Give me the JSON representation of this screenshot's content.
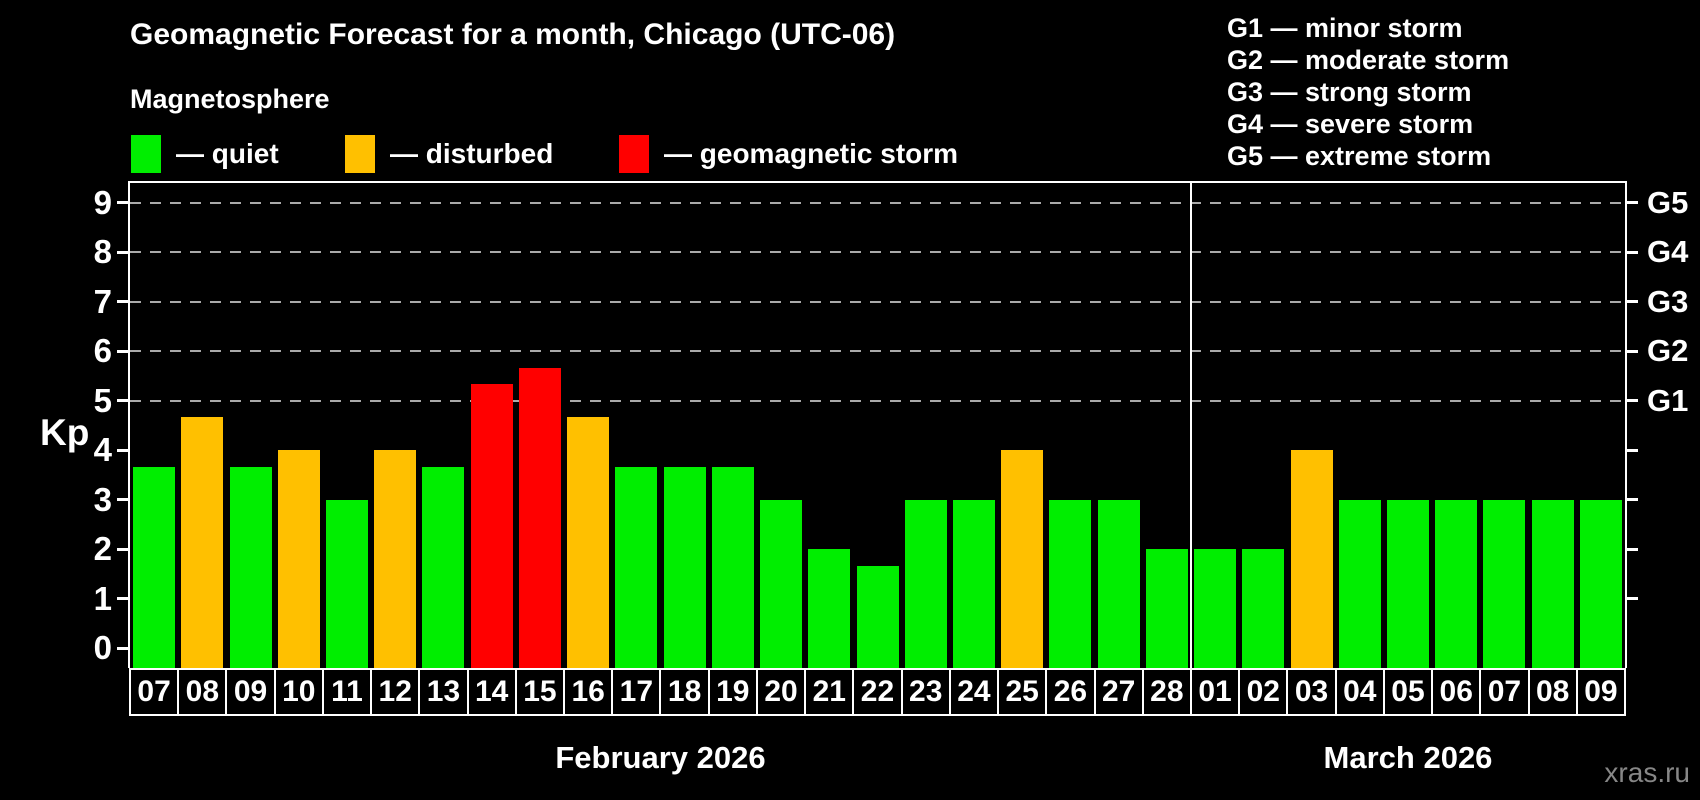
{
  "title": "Geomagnetic Forecast for a month, Chicago (UTC-06)",
  "subtitle": "Magnetosphere",
  "legend": {
    "items": [
      {
        "status": "quiet",
        "label": "— quiet",
        "color": "#00ee00"
      },
      {
        "status": "disturbed",
        "label": "— disturbed",
        "color": "#ffc000"
      },
      {
        "status": "storm",
        "label": "— geomagnetic storm",
        "color": "#ff0000"
      }
    ]
  },
  "storm_scale": [
    {
      "code": "G1",
      "name": "minor storm",
      "label": "G1 — minor storm"
    },
    {
      "code": "G2",
      "name": "moderate storm",
      "label": "G2 — moderate storm"
    },
    {
      "code": "G3",
      "name": "strong storm",
      "label": "G3 — strong storm"
    },
    {
      "code": "G4",
      "name": "severe storm",
      "label": "G4 — severe storm"
    },
    {
      "code": "G5",
      "name": "extreme storm",
      "label": "G5 — extreme storm"
    }
  ],
  "watermark": "xras.ru",
  "chart_data": {
    "type": "bar",
    "ylabel": "Kp",
    "ylim": [
      -0.4,
      9.4
    ],
    "yticks": [
      0,
      1,
      2,
      3,
      4,
      5,
      6,
      7,
      8,
      9
    ],
    "right_ticks": [
      1,
      2,
      3,
      4,
      5,
      6,
      7,
      8,
      9
    ],
    "gridlines_kp": [
      5,
      6,
      7,
      8,
      9
    ],
    "right_axis": [
      {
        "kp": 9,
        "label": "G5"
      },
      {
        "kp": 8,
        "label": "G4"
      },
      {
        "kp": 7,
        "label": "G3"
      },
      {
        "kp": 6,
        "label": "G2"
      },
      {
        "kp": 5,
        "label": "G1"
      }
    ],
    "months": [
      {
        "label": "February 2026",
        "days": 22
      },
      {
        "label": "March 2026",
        "days": 9
      }
    ],
    "categories": [
      "07",
      "08",
      "09",
      "10",
      "11",
      "12",
      "13",
      "14",
      "15",
      "16",
      "17",
      "18",
      "19",
      "20",
      "21",
      "22",
      "23",
      "24",
      "25",
      "26",
      "27",
      "28",
      "01",
      "02",
      "03",
      "04",
      "05",
      "06",
      "07",
      "08",
      "09"
    ],
    "values": [
      3.67,
      4.67,
      3.67,
      4,
      3,
      4,
      3.67,
      5.33,
      5.67,
      4.67,
      3.67,
      3.67,
      3.67,
      3,
      2,
      1.67,
      3,
      3,
      4,
      3,
      3,
      2,
      2,
      2,
      4,
      3,
      3,
      3,
      3,
      3,
      3
    ],
    "statuses": [
      "quiet",
      "disturbed",
      "quiet",
      "disturbed",
      "quiet",
      "disturbed",
      "quiet",
      "storm",
      "storm",
      "disturbed",
      "quiet",
      "quiet",
      "quiet",
      "quiet",
      "quiet",
      "quiet",
      "quiet",
      "quiet",
      "disturbed",
      "quiet",
      "quiet",
      "quiet",
      "quiet",
      "quiet",
      "disturbed",
      "quiet",
      "quiet",
      "quiet",
      "quiet",
      "quiet",
      "quiet"
    ],
    "colors": {
      "quiet": "#00ee00",
      "disturbed": "#ffc000",
      "storm": "#ff0000"
    }
  }
}
